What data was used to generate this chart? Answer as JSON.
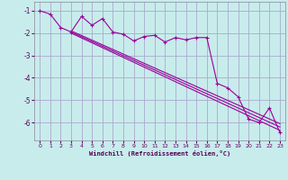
{
  "xlabel": "Windchill (Refroidissement éolien,°C)",
  "background_color": "#c8ecec",
  "line_color": "#990099",
  "grid_color": "#aaaacc",
  "x_data": [
    0,
    1,
    2,
    3,
    4,
    5,
    6,
    7,
    8,
    9,
    10,
    11,
    12,
    13,
    14,
    15,
    16,
    17,
    18,
    19,
    20,
    21,
    22,
    23
  ],
  "y_scatter": [
    -1.0,
    -1.15,
    -1.75,
    -1.95,
    -1.25,
    -1.65,
    -1.35,
    -1.95,
    -2.05,
    -2.35,
    -2.15,
    -2.1,
    -2.4,
    -2.2,
    -2.3,
    -2.2,
    -2.2,
    -4.25,
    -4.45,
    -4.85,
    -5.85,
    -6.0,
    -5.35,
    -6.45
  ],
  "trend_lines": [
    {
      "x": [
        3,
        23
      ],
      "y": [
        -1.9,
        -6.05
      ]
    },
    {
      "x": [
        3,
        23
      ],
      "y": [
        -1.95,
        -6.2
      ]
    },
    {
      "x": [
        3,
        23
      ],
      "y": [
        -2.0,
        -6.35
      ]
    }
  ],
  "xlim": [
    -0.5,
    23.5
  ],
  "ylim": [
    -6.8,
    -0.6
  ],
  "yticks": [
    -1,
    -2,
    -3,
    -4,
    -5,
    -6
  ],
  "xticks": [
    0,
    1,
    2,
    3,
    4,
    5,
    6,
    7,
    8,
    9,
    10,
    11,
    12,
    13,
    14,
    15,
    16,
    17,
    18,
    19,
    20,
    21,
    22,
    23
  ]
}
